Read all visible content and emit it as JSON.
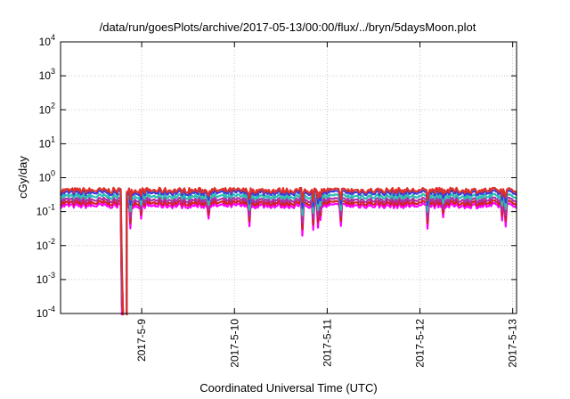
{
  "chart_data": {
    "type": "line",
    "title": "/data/run/goesPlots/archive/2017-05-13/00:00/flux/../bryn/5daysMoon.plot",
    "xlabel": "Coordinated Universal Time (UTC)",
    "ylabel": "cGy/day",
    "y_scale": "log",
    "ylim": [
      0.0001,
      10000
    ],
    "xlim": [
      "2017-05-08T03:00",
      "2017-05-13T01:00"
    ],
    "x_ticks": [
      {
        "x": "2017-05-09T00:00",
        "label": "2017-5-9"
      },
      {
        "x": "2017-05-10T00:00",
        "label": "2017-5-10"
      },
      {
        "x": "2017-05-11T00:00",
        "label": "2017-5-11"
      },
      {
        "x": "2017-05-12T00:00",
        "label": "2017-5-12"
      },
      {
        "x": "2017-05-13T00:00",
        "label": "2017-5-13"
      }
    ],
    "y_ticks": [
      {
        "y": 0.0001,
        "base": "10",
        "exp": "-4"
      },
      {
        "y": 0.001,
        "base": "10",
        "exp": "-3"
      },
      {
        "y": 0.01,
        "base": "10",
        "exp": "-2"
      },
      {
        "y": 0.1,
        "base": "10",
        "exp": "-1"
      },
      {
        "y": 1,
        "base": "10",
        "exp": "0"
      },
      {
        "y": 10,
        "base": "10",
        "exp": "1"
      },
      {
        "y": 100,
        "base": "10",
        "exp": "2"
      },
      {
        "y": 1000,
        "base": "10",
        "exp": "3"
      },
      {
        "y": 10000,
        "base": "10",
        "exp": "4"
      }
    ],
    "grid": true,
    "dropout": {
      "start": "2017-05-08T18:40",
      "end": "2017-05-08T20:00",
      "min": 0.0001
    },
    "series": [
      {
        "color": "#e0302a",
        "level": 0.42
      },
      {
        "color": "#3a3adf",
        "level": 0.36
      },
      {
        "color": "#2bbfb0",
        "level": 0.28
      },
      {
        "color": "#b02ea8",
        "level": 0.22
      },
      {
        "color": "#d22020",
        "level": 0.18
      },
      {
        "color": "#ff00ff",
        "level": 0.15
      }
    ]
  }
}
